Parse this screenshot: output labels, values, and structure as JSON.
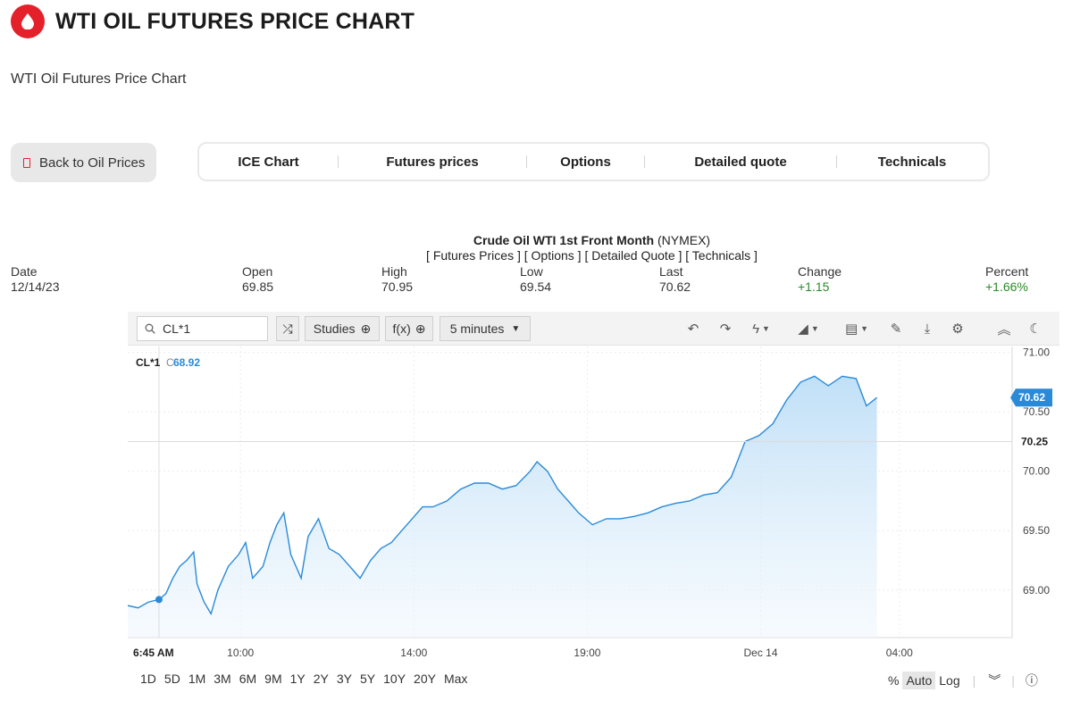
{
  "header": {
    "title": "WTI OIL FUTURES PRICE CHART",
    "subtitle": "WTI Oil Futures Price Chart",
    "logo_icon": "oil-drop-icon",
    "brand_color": "#e4202b"
  },
  "back_button": {
    "label": "Back to Oil Prices"
  },
  "nav_tabs": [
    {
      "label": "ICE Chart"
    },
    {
      "label": "Futures prices"
    },
    {
      "label": "Options"
    },
    {
      "label": "Detailed quote"
    },
    {
      "label": "Technicals"
    }
  ],
  "quote": {
    "name": "Crude Oil WTI 1st Front Month",
    "exchange": "(NYMEX)",
    "links": "[ Futures Prices ] [ Options ] [ Detailed Quote ] [ Technicals ]",
    "stats": {
      "date_label": "Date",
      "date_value": "12/14/23",
      "open_label": "Open",
      "open_value": "69.85",
      "high_label": "High",
      "high_value": "70.95",
      "low_label": "Low",
      "low_value": "69.54",
      "last_label": "Last",
      "last_value": "70.62",
      "change_label": "Change",
      "change_value": "+1.15",
      "percent_label": "Percent",
      "percent_value": "+1.66%"
    }
  },
  "toolbar": {
    "symbol": "CL*1",
    "studies_label": "Studies",
    "fx_label": "f(x)",
    "interval_label": "5 minutes"
  },
  "chart_info": {
    "legend_symbol": "CL*1",
    "legend_prefix": "C",
    "legend_value": "68.92",
    "last_price_tag": "70.62",
    "crosshair_price_tag": "70.25",
    "crosshair_time_tag": "6:45 AM"
  },
  "range_buttons": [
    "1D",
    "5D",
    "1M",
    "3M",
    "6M",
    "9M",
    "1Y",
    "2Y",
    "3Y",
    "5Y",
    "10Y",
    "20Y",
    "Max"
  ],
  "scale_buttons": {
    "percent": "%",
    "auto": "Auto",
    "log": "Log"
  },
  "chart_data": {
    "type": "area",
    "series": [
      {
        "name": "CL*1",
        "color": "#2a8ad8",
        "points": [
          [
            0,
            68.87
          ],
          [
            0.3,
            68.85
          ],
          [
            0.6,
            68.9
          ],
          [
            0.9,
            68.92
          ],
          [
            1.1,
            68.97
          ],
          [
            1.3,
            69.1
          ],
          [
            1.5,
            69.2
          ],
          [
            1.7,
            69.25
          ],
          [
            1.9,
            69.32
          ],
          [
            2.0,
            69.05
          ],
          [
            2.2,
            68.9
          ],
          [
            2.4,
            68.8
          ],
          [
            2.6,
            69.0
          ],
          [
            2.9,
            69.2
          ],
          [
            3.2,
            69.3
          ],
          [
            3.4,
            69.4
          ],
          [
            3.6,
            69.1
          ],
          [
            3.9,
            69.2
          ],
          [
            4.1,
            69.4
          ],
          [
            4.3,
            69.55
          ],
          [
            4.5,
            69.65
          ],
          [
            4.7,
            69.3
          ],
          [
            5.0,
            69.1
          ],
          [
            5.2,
            69.45
          ],
          [
            5.5,
            69.6
          ],
          [
            5.8,
            69.35
          ],
          [
            6.1,
            69.3
          ],
          [
            6.4,
            69.2
          ],
          [
            6.7,
            69.1
          ],
          [
            7.0,
            69.25
          ],
          [
            7.3,
            69.35
          ],
          [
            7.6,
            69.4
          ],
          [
            7.9,
            69.5
          ],
          [
            8.2,
            69.6
          ],
          [
            8.5,
            69.7
          ],
          [
            8.8,
            69.7
          ],
          [
            9.2,
            69.75
          ],
          [
            9.6,
            69.85
          ],
          [
            10.0,
            69.9
          ],
          [
            10.4,
            69.9
          ],
          [
            10.8,
            69.85
          ],
          [
            11.2,
            69.88
          ],
          [
            11.6,
            70.0
          ],
          [
            11.8,
            70.08
          ],
          [
            12.1,
            70.0
          ],
          [
            12.4,
            69.85
          ],
          [
            12.7,
            69.75
          ],
          [
            13.0,
            69.65
          ],
          [
            13.4,
            69.55
          ],
          [
            13.8,
            69.6
          ],
          [
            14.2,
            69.6
          ],
          [
            14.6,
            69.62
          ],
          [
            15.0,
            69.65
          ],
          [
            15.4,
            69.7
          ],
          [
            15.8,
            69.73
          ],
          [
            16.2,
            69.75
          ],
          [
            16.6,
            69.8
          ],
          [
            17.0,
            69.82
          ],
          [
            17.4,
            69.95
          ],
          [
            17.8,
            70.25
          ],
          [
            18.2,
            70.3
          ],
          [
            18.6,
            70.4
          ],
          [
            19.0,
            70.6
          ],
          [
            19.4,
            70.75
          ],
          [
            19.8,
            70.8
          ],
          [
            20.2,
            70.72
          ],
          [
            20.6,
            70.8
          ],
          [
            21.0,
            70.78
          ],
          [
            21.3,
            70.55
          ],
          [
            21.6,
            70.62
          ]
        ]
      }
    ],
    "x_ticks": [
      {
        "x": 3.25,
        "label": "10:00"
      },
      {
        "x": 8.25,
        "label": "14:00"
      },
      {
        "x": 13.25,
        "label": "19:00"
      },
      {
        "x": 18.25,
        "label": "Dec 14"
      },
      {
        "x": 22.25,
        "label": "04:00"
      }
    ],
    "y_ticks": [
      69.0,
      69.5,
      70.0,
      70.5,
      71.0
    ],
    "xlim": [
      0,
      25.5
    ],
    "ylim": [
      68.6,
      71.05
    ],
    "ylabel": "",
    "xlabel": "",
    "grid": true
  }
}
